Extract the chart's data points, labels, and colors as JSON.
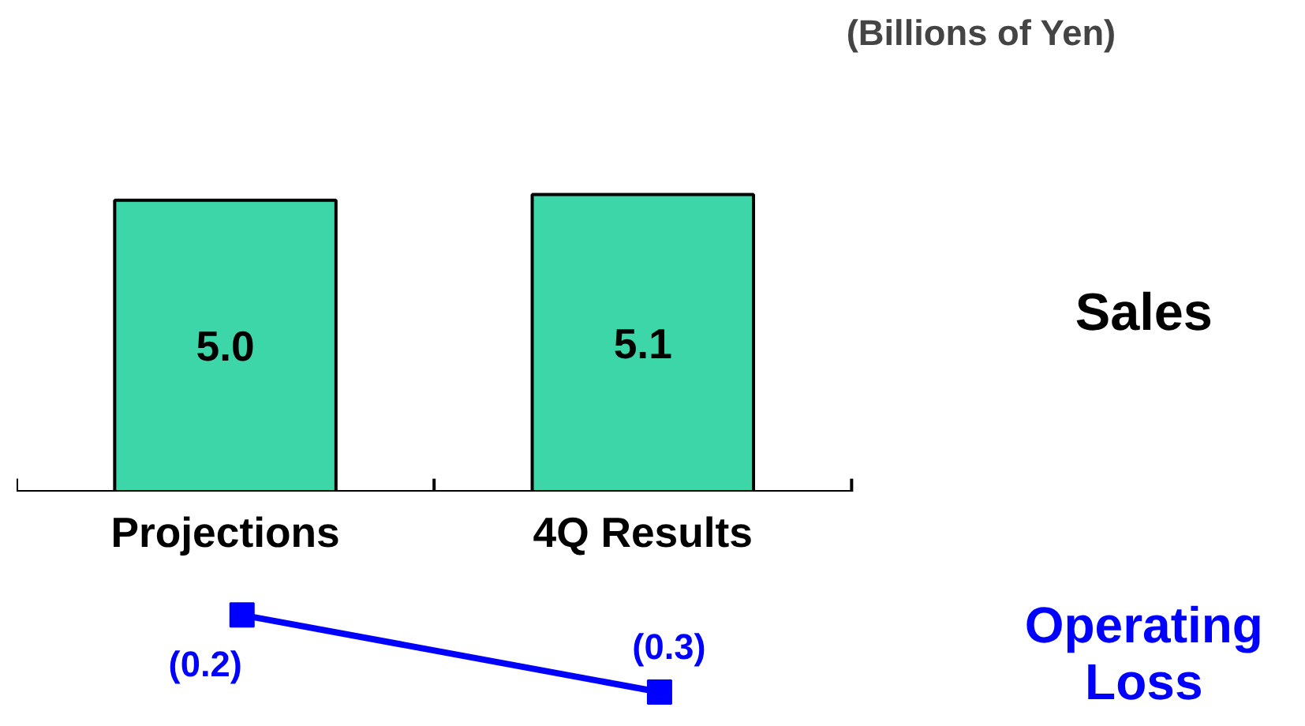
{
  "chart_data": [
    {
      "type": "bar",
      "subtitle": "(Billions of Yen)",
      "categories": [
        "Projections",
        "4Q Results"
      ],
      "series": [
        {
          "name": "Sales",
          "color": "#3dd6a8",
          "values": [
            5.0,
            5.1
          ],
          "value_labels": [
            "5.0",
            "5.1"
          ]
        }
      ]
    },
    {
      "type": "line",
      "categories": [
        null,
        null
      ],
      "marker": "square",
      "line_style": "solid",
      "series": [
        {
          "name": "Operating Loss",
          "color": "#0000ff",
          "values": [
            -0.2,
            -0.3
          ],
          "value_labels": [
            "(0.2)",
            "(0.3)"
          ]
        }
      ]
    }
  ]
}
